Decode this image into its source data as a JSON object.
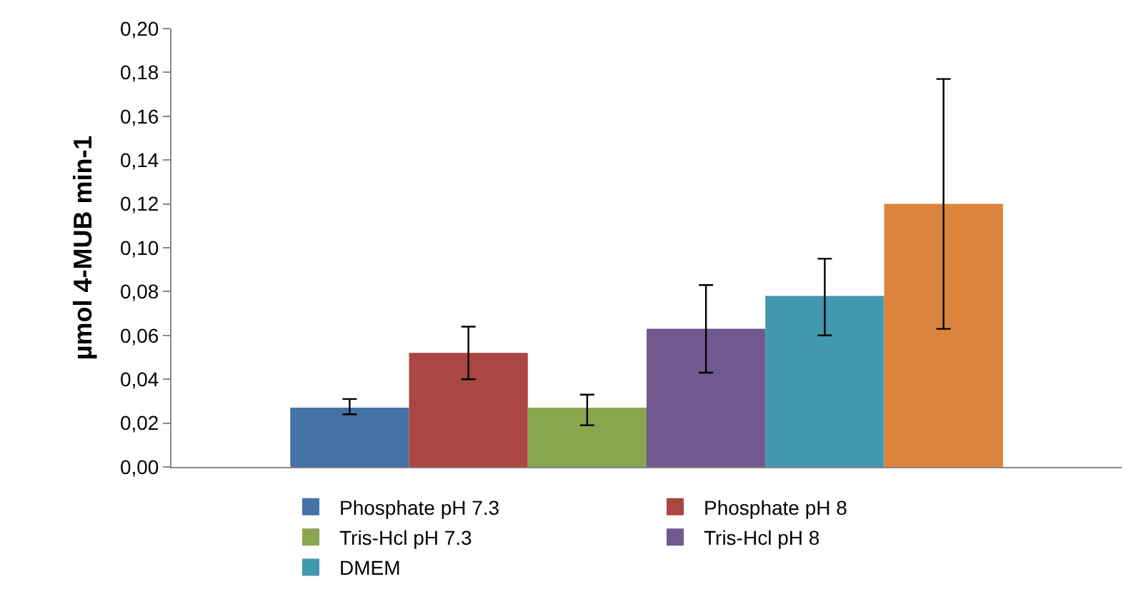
{
  "chart_data": {
    "type": "bar",
    "ylabel": "µmol 4-MUB min-1",
    "categories": [
      null
    ],
    "series": [
      {
        "name": "Phosphate pH 7.3",
        "color": "#4572a7",
        "values": [
          0.027
        ],
        "errors": [
          [
            0.024,
            0.031
          ]
        ]
      },
      {
        "name": "Phosphate pH 8",
        "color": "#aa4643",
        "values": [
          0.052
        ],
        "errors": [
          [
            0.04,
            0.064
          ]
        ]
      },
      {
        "name": "Tris-Hcl pH 7.3",
        "color": "#89a54e",
        "values": [
          0.027
        ],
        "errors": [
          [
            0.019,
            0.033
          ]
        ]
      },
      {
        "name": "Tris-Hcl pH 8",
        "color": "#71588f",
        "values": [
          0.063
        ],
        "errors": [
          [
            0.043,
            0.083
          ]
        ]
      },
      {
        "name": "DMEM",
        "color": "#4198af",
        "values": [
          0.078
        ],
        "errors": [
          [
            0.06,
            0.095
          ]
        ]
      },
      {
        "color": "#db843d",
        "values": [
          0.12
        ],
        "errors": [
          [
            0.063,
            0.177
          ]
        ]
      }
    ],
    "ylim": [
      0,
      0.2
    ],
    "yticks": [
      {
        "value": 0,
        "label": "0,00"
      },
      {
        "value": 0.02,
        "label": "0,02"
      },
      {
        "value": 0.04,
        "label": "0,04"
      },
      {
        "value": 0.06,
        "label": "0,06"
      },
      {
        "value": 0.08,
        "label": "0,08"
      },
      {
        "value": 0.1,
        "label": "0,10"
      },
      {
        "value": 0.12,
        "label": "0,12"
      },
      {
        "value": 0.14,
        "label": "0,14"
      },
      {
        "value": 0.16,
        "label": "0,16"
      },
      {
        "value": 0.18,
        "label": "0,18"
      },
      {
        "value": 0.2,
        "label": "0,20"
      }
    ],
    "legend": "bottom",
    "grid": false
  }
}
